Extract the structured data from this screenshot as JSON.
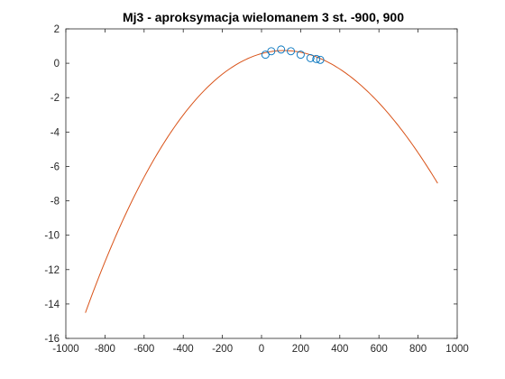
{
  "chart_data": {
    "type": "scatter",
    "title": "Mj3 - aproksymacja wielomanem 3 st. -900, 900",
    "xlim": [
      -1000,
      1000
    ],
    "ylim": [
      -16,
      2
    ],
    "x_ticks": [
      -1000,
      -800,
      -600,
      -400,
      -200,
      0,
      200,
      400,
      600,
      800,
      1000
    ],
    "y_ticks": [
      -16,
      -14,
      -12,
      -10,
      -8,
      -6,
      -4,
      -2,
      0,
      2
    ],
    "grid": false,
    "legend": "none",
    "series": [
      {
        "kind": "points",
        "marker": "circle",
        "color": "#0072BD",
        "x": [
          20,
          50,
          100,
          150,
          200,
          250,
          280,
          300
        ],
        "y": [
          0.5,
          0.7,
          0.8,
          0.7,
          0.5,
          0.3,
          0.25,
          0.2
        ]
      },
      {
        "kind": "line",
        "color": "#D95319",
        "x_range": [
          -900,
          900
        ],
        "polynomial_coefficients_ascending": [
          0.562,
          0.003131,
          -1.396e-05,
          1.3e-09
        ]
      }
    ]
  }
}
